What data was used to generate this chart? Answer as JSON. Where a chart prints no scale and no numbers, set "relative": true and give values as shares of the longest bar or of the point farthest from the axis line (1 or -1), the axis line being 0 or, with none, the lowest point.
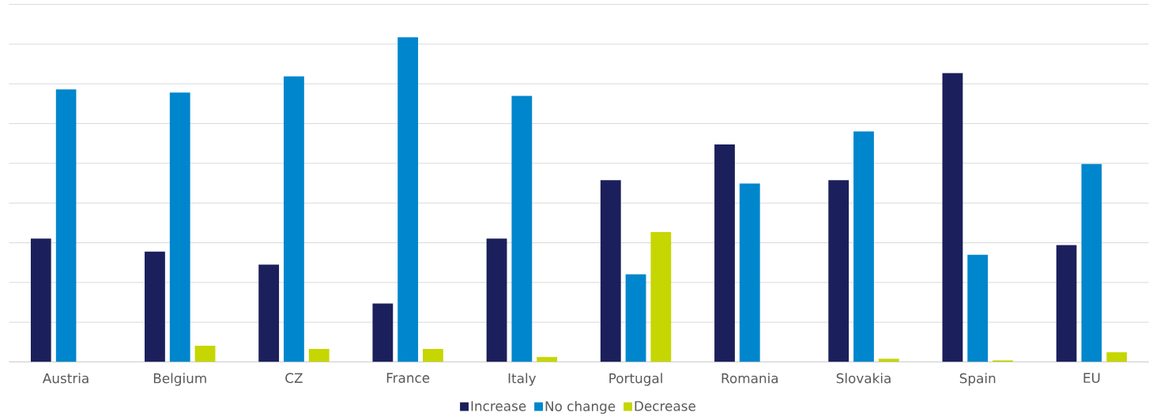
{
  "chart_data": {
    "type": "bar",
    "relative": true,
    "grid": "y",
    "legend": "bottom",
    "categories": [
      "Austria",
      "Belgium",
      "CZ",
      "France",
      "Italy",
      "Portugal",
      "Romania",
      "Slovakia",
      "Spain",
      "EU"
    ],
    "series": [
      {
        "name": "Increase",
        "color": "#1b1f5b",
        "values": [
          0.38,
          0.34,
          0.3,
          0.18,
          0.38,
          0.56,
          0.67,
          0.56,
          0.89,
          0.36
        ]
      },
      {
        "name": "No change",
        "color": "#0086cc",
        "values": [
          0.84,
          0.83,
          0.88,
          1.0,
          0.82,
          0.27,
          0.55,
          0.71,
          0.33,
          0.61
        ]
      },
      {
        "name": "Decrease",
        "color": "#c5d600",
        "values": [
          0,
          0.05,
          0.04,
          0.04,
          0.015,
          0.4,
          0,
          0.01,
          0.005,
          0.03
        ]
      }
    ]
  }
}
